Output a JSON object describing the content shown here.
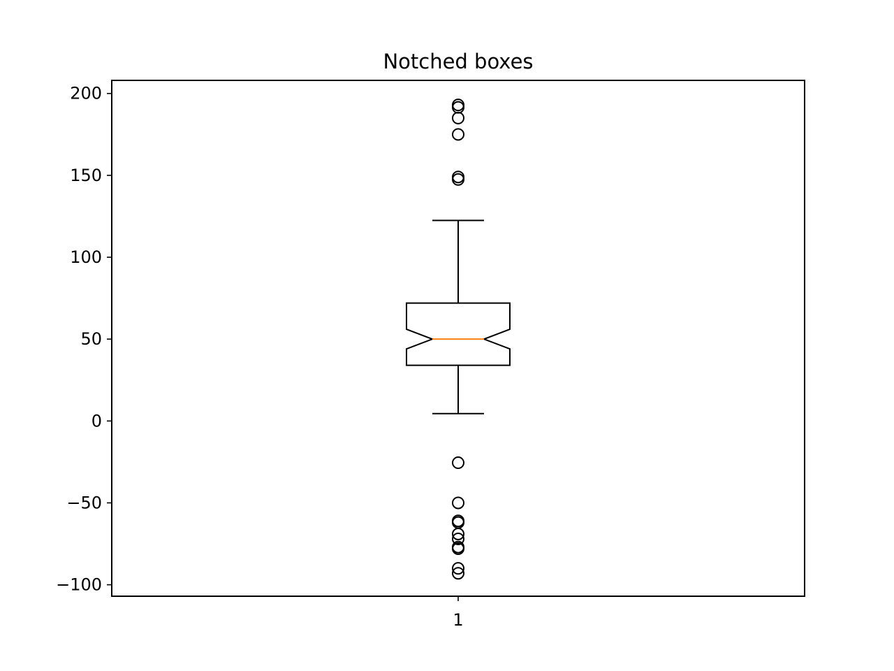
{
  "chart_data": {
    "type": "boxplot",
    "title": "Notched boxes",
    "xlabel": "",
    "ylabel": "",
    "notched": true,
    "grid": false,
    "ylim": [
      -107,
      208
    ],
    "yticks": [
      -100,
      -50,
      0,
      50,
      100,
      150,
      200
    ],
    "ytick_labels": [
      "−100",
      "−50",
      "0",
      "50",
      "100",
      "150",
      "200"
    ],
    "categories": [
      "1"
    ],
    "boxes": [
      {
        "label": "1",
        "whisker_low": 4.5,
        "q1": 34,
        "notch_low": 44,
        "median": 50,
        "notch_high": 56,
        "q3": 72,
        "whisker_high": 122.5,
        "outliers": [
          193,
          191.5,
          185,
          175,
          149,
          147.5,
          -25.5,
          -50,
          -61,
          -62,
          -69,
          -72,
          -77,
          -78,
          -90,
          -93
        ]
      }
    ],
    "colors": {
      "box": "#000000",
      "median": "#ff7f0e",
      "outlier": "#000000"
    }
  }
}
